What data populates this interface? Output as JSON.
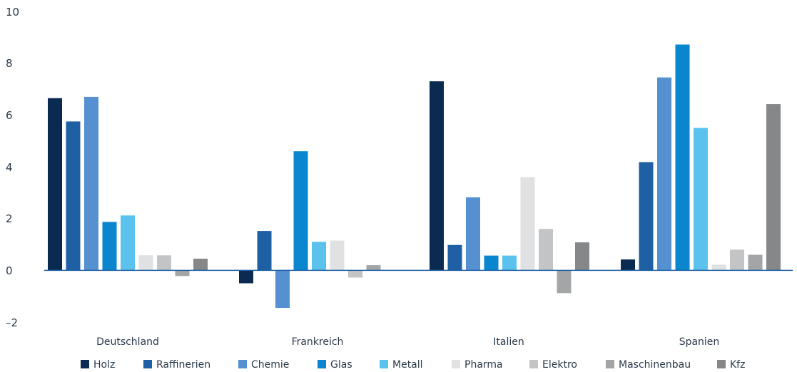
{
  "chart_data": {
    "type": "bar",
    "categories": [
      "Deutschland",
      "Frankreich",
      "Italien",
      "Spanien"
    ],
    "series": [
      {
        "name": "Holz",
        "color": "#0a2a52",
        "values": [
          6.65,
          -0.5,
          7.3,
          0.42
        ]
      },
      {
        "name": "Raffinerien",
        "color": "#1f5fa3",
        "values": [
          5.75,
          1.52,
          0.98,
          4.18
        ]
      },
      {
        "name": "Chemie",
        "color": "#5590d0",
        "values": [
          6.7,
          -1.45,
          2.82,
          7.45
        ]
      },
      {
        "name": "Glas",
        "color": "#0a86cf",
        "values": [
          1.87,
          4.6,
          0.57,
          8.72
        ]
      },
      {
        "name": "Metall",
        "color": "#5bc2ee",
        "values": [
          2.12,
          1.1,
          0.57,
          5.5
        ]
      },
      {
        "name": "Pharma",
        "color": "#e0e1e3",
        "values": [
          0.58,
          1.15,
          3.6,
          0.22
        ]
      },
      {
        "name": "Elektro",
        "color": "#c3c4c6",
        "values": [
          0.58,
          -0.28,
          1.6,
          0.8
        ]
      },
      {
        "name": "Maschinenbau",
        "color": "#a3a5a7",
        "values": [
          -0.22,
          0.2,
          -0.88,
          0.6
        ]
      },
      {
        "name": "Kfz",
        "color": "#858788",
        "values": [
          0.45,
          null,
          1.08,
          6.42
        ]
      }
    ],
    "y_ticks": [
      "10",
      "8",
      "6",
      "4",
      "2",
      "0",
      "–2"
    ],
    "ylim": [
      -2,
      10
    ],
    "grid": false,
    "legend_position": "bottom",
    "title": "",
    "xlabel": "",
    "ylabel": ""
  }
}
